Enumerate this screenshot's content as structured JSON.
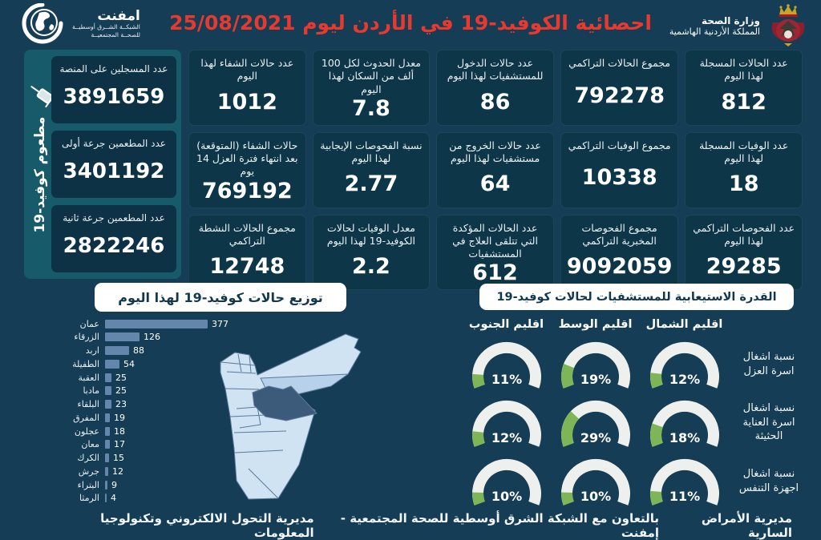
{
  "header": {
    "title": "احصائية الكوفيد-19 في الأردن ليوم  25/08/2021",
    "date": "25/08/2021",
    "emphnet_logo": {
      "name": "امفنت",
      "line1": "الشبكــة الشــرق أوسطيــة",
      "line2": "للصحــة المجتمعيــة"
    },
    "ministry": {
      "line1": "وزارة الصحة",
      "line2": "المملكة الأردنية الهاشمية"
    }
  },
  "vaccine_panel": {
    "vertical_label": "مطعوم كوفيد-19",
    "stats": [
      {
        "label": "عدد المسجلين على المنصة",
        "value": "3891659"
      },
      {
        "label": "عدد المطعمين جرعة أولى",
        "value": "3401192"
      },
      {
        "label": "عدد المطعمين جرعة ثانية",
        "value": "2822246"
      }
    ]
  },
  "stat_cards": [
    {
      "label": "عدد الحالات المسجلة لهذا اليوم",
      "value": "812"
    },
    {
      "label": "مجموع الحالات التراكمي",
      "value": "792278"
    },
    {
      "label": "عدد حالات الدخول للمستشفيات لهذا اليوم",
      "value": "86"
    },
    {
      "label": "معدل الحدوث لكل 100 ألف من السكان لهذا اليوم",
      "value": "7.8"
    },
    {
      "label": "عدد حالات الشفاء لهذا اليوم",
      "value": "1012"
    },
    {
      "label": "عدد الوفيات المسجلة لهذا اليوم",
      "value": "18"
    },
    {
      "label": "مجموع الوفيات التراكمي",
      "value": "10338"
    },
    {
      "label": "عدد حالات الخروج من مستشفيات لهذا اليوم",
      "value": "64"
    },
    {
      "label": "نسبة الفحوصات الإيجابية لهذا اليوم",
      "value": "2.77"
    },
    {
      "label": "حالات الشفاء (المتوقعة) بعد انتهاء فترة العزل 14 يوم",
      "value": "769192"
    },
    {
      "label": "عدد الفحوصات التراكمي لهذا اليوم",
      "value": "29285"
    },
    {
      "label": "مجموع الفحوصات المخبرية التراكمي",
      "value": "9092059"
    },
    {
      "label": "عدد الحالات المؤكدة التي تتلقى العلاج في المستشفيات",
      "value": "612"
    },
    {
      "label": "معدل الوفيات لحالات الكوفيد-19 لهذا اليوم",
      "value": "2.2"
    },
    {
      "label": "مجموع الحالات النشطة التراكمي",
      "value": "12748"
    }
  ],
  "chart_data": [
    {
      "type": "bar",
      "orientation": "horizontal",
      "title": "توزيع حالات كوفيد-19 لهذا اليوم",
      "categories": [
        "عمان",
        "الزرقاء",
        "اربد",
        "الطفيلة",
        "العقبة",
        "مادبا",
        "البلقاء",
        "المفرق",
        "عجلون",
        "معان",
        "الكرك",
        "جرش",
        "البتراء",
        "الرمثا"
      ],
      "values": [
        377,
        126,
        88,
        54,
        25,
        25,
        23,
        19,
        18,
        17,
        15,
        12,
        9,
        4
      ],
      "xlim": [
        0,
        377
      ],
      "bar_color": "#6486ac"
    },
    {
      "type": "gauge",
      "title": "القدرة الاستيعابية للمستشفيات لحالات كوفيد-19",
      "unit": "%",
      "columns": [
        "اقليم الشمال",
        "اقليم الوسط",
        "اقليم الجنوب"
      ],
      "rows": [
        {
          "label": "نسبة اشغال اسرة العزل",
          "values": [
            12,
            19,
            11
          ]
        },
        {
          "label": "نسبة اشغال اسرة العناية الحثيثة",
          "values": [
            18,
            29,
            12
          ]
        },
        {
          "label": "نسبة اشغال اجهزة التنفس",
          "values": [
            11,
            10,
            10
          ]
        }
      ],
      "colors": {
        "fill": "#7eb657",
        "track": "#edf0ec"
      }
    }
  ],
  "footer": {
    "right": "مديرية الأمراض السارية",
    "center": "بالتعاون مع الشبكة الشرق أوسطية للصحة المجتمعية - إمفنت",
    "left": "مديرية التحول الالكتروني وتكنولوجيا المعلومات"
  },
  "colors": {
    "background": "#153d56",
    "card": "#0e3649",
    "sidebar": "#175b6b",
    "accent_red": "#e8392e",
    "bar": "#6486ac",
    "gauge_green": "#7eb657",
    "map_light": "#cfe3f3",
    "map_amman": "#3c5a7a",
    "map_zarqa": "#b7d1ea"
  }
}
